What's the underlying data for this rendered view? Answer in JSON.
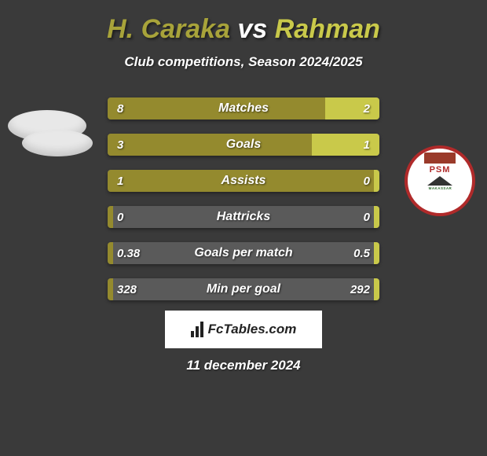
{
  "title": {
    "player1": "H. Caraka",
    "vs": "vs",
    "player2": "Rahman",
    "color_player1": "#a8a33a",
    "color_vs": "#ffffff",
    "color_player2": "#c9c94a",
    "fontsize": 34
  },
  "subtitle": {
    "text": "Club competitions, Season 2024/2025",
    "fontsize": 17
  },
  "background_color": "#3a3a3a",
  "colors": {
    "left_fill": "#948a2e",
    "right_fill": "#c9c94a",
    "empty_fill": "#5a5a5a"
  },
  "bar_style": {
    "height": 28,
    "gap": 18,
    "border_radius": 4,
    "label_fontsize": 16,
    "value_fontsize": 15
  },
  "stats": [
    {
      "label": "Matches",
      "left_val": "8",
      "right_val": "2",
      "left_pct": 80,
      "right_pct": 20
    },
    {
      "label": "Goals",
      "left_val": "3",
      "right_val": "1",
      "left_pct": 75,
      "right_pct": 25
    },
    {
      "label": "Assists",
      "left_val": "1",
      "right_val": "0",
      "left_pct": 98,
      "right_pct": 2
    },
    {
      "label": "Hattricks",
      "left_val": "0",
      "right_val": "0",
      "left_pct": 2,
      "right_pct": 2
    },
    {
      "label": "Goals per match",
      "left_val": "0.38",
      "right_val": "0.5",
      "left_pct": 2,
      "right_pct": 2
    },
    {
      "label": "Min per goal",
      "left_val": "328",
      "right_val": "292",
      "left_pct": 2,
      "right_pct": 2
    }
  ],
  "logo_right": {
    "name": "PSM Makassar",
    "text_top": "PSM",
    "text_bottom": "MAKASSAR",
    "border_color": "#b02a2a",
    "bg_color": "#ffffff"
  },
  "footer_brand": {
    "text": "FcTables.com"
  },
  "date": {
    "text": "11 december 2024",
    "fontsize": 17
  }
}
